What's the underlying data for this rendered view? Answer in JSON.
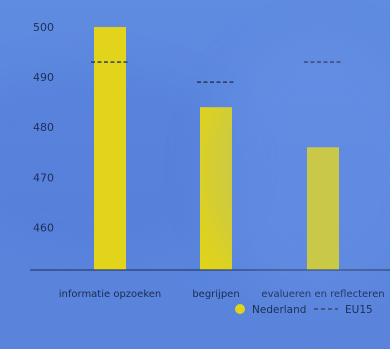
{
  "chart_data": {
    "type": "bar",
    "categories": [
      "informatie opzoeken",
      "begrijpen",
      "evalueren en reflecteren"
    ],
    "series": [
      {
        "name": "Nederland",
        "values": [
          500,
          484,
          476
        ],
        "color": "#e1d41a"
      },
      {
        "name": "EU15",
        "values": [
          493,
          489,
          493
        ],
        "style": "dashed",
        "color": "#2a3355"
      }
    ],
    "yticks": [
      460,
      470,
      480,
      490,
      500
    ],
    "ylim": [
      451.5,
      503
    ],
    "grid": false,
    "legend_position": "bottom-right"
  }
}
